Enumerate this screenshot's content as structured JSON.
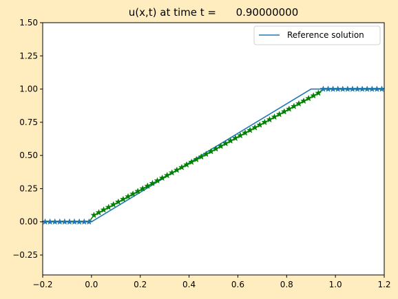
{
  "figure": {
    "background": "#ffedc0"
  },
  "chart_data": {
    "type": "line",
    "title": "u(x,t) at time t =      0.90000000",
    "xlabel": "",
    "ylabel": "",
    "xlim": [
      -0.2,
      1.2
    ],
    "ylim": [
      -0.4,
      1.5
    ],
    "xticks": [
      -0.2,
      0.0,
      0.2,
      0.4,
      0.6,
      0.8,
      1.0,
      1.2
    ],
    "xtick_labels": [
      "−0.2",
      "0.0",
      "0.2",
      "0.4",
      "0.6",
      "0.8",
      "1.0",
      "1.2"
    ],
    "yticks": [
      -0.25,
      0.0,
      0.25,
      0.5,
      0.75,
      1.0,
      1.25,
      1.5
    ],
    "ytick_labels": [
      "−0.25",
      "0.00",
      "0.25",
      "0.50",
      "0.75",
      "1.00",
      "1.25",
      "1.50"
    ],
    "grid": false,
    "legend_position": "top-right",
    "series": [
      {
        "name": "Reference solution",
        "kind": "line",
        "color": "#1f77b4",
        "x": [
          -0.2,
          0.0,
          0.9,
          1.2
        ],
        "y": [
          0.0,
          0.0,
          1.0,
          1.0
        ]
      },
      {
        "kind": "markers",
        "marker": "star",
        "marker_color": "#1f77b4",
        "line_color": "#008000",
        "x_start": -0.19,
        "x_step": 0.02,
        "x_count": 70,
        "y_flat_low": 0.0,
        "y_flat_high": 1.0,
        "y_ramp_start_x": 0.0,
        "y_ramp_start": 0.04,
        "y_ramp_end_x": 0.94,
        "y_ramp_end": 0.98
      }
    ]
  }
}
